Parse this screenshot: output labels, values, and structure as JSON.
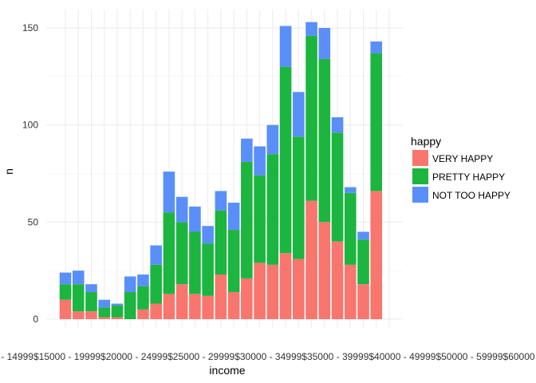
{
  "chart_data": {
    "type": "bar",
    "stacked": true,
    "xlabel": "income",
    "ylabel": "n",
    "ylim": [
      0,
      158
    ],
    "yticks": [
      0,
      50,
      100,
      150
    ],
    "grid": true,
    "legend_position": "right",
    "legend_title": "happy",
    "x_tick_text": "UNDER $1000$1000 TO 2999$3000 TO 3999$4000 TO 4999$5000 TO 5999$6000 TO 6999$7000 TO 7999$8000 TO 9999$10000 - 14999$15000 - 19999$20000 - 24999$25000 - 29999$30000 - 34999$35000 - 39999$40000 - 49999$50000 - 59999$60000 - 74999$75000 - 89999$90000 - 109999$110000 - 129999$130000 - 149999$150000 - 169999$170000 OR OVER",
    "categories": [
      "c1",
      "c2",
      "c3",
      "c4",
      "c5",
      "c6",
      "c7",
      "c8",
      "c9",
      "c10",
      "c11",
      "c12",
      "c13",
      "c14",
      "c15",
      "c16",
      "c17",
      "c18",
      "c19",
      "c20",
      "c21",
      "c22",
      "c23",
      "c24",
      "c25",
      "c26"
    ],
    "series": [
      {
        "name": "VERY HAPPY",
        "color": "#F8766D",
        "values": [
          10,
          4,
          4,
          1,
          1,
          0,
          5,
          8,
          13,
          18,
          13,
          12,
          23,
          14,
          21,
          29,
          28,
          34,
          31,
          61,
          50,
          40,
          28,
          18,
          66,
          0
        ]
      },
      {
        "name": "PRETTY HAPPY",
        "color": "#1CB540",
        "values": [
          8,
          14,
          10,
          5,
          6,
          14,
          12,
          20,
          42,
          32,
          32,
          27,
          33,
          32,
          60,
          45,
          57,
          96,
          63,
          85,
          84,
          56,
          37,
          23,
          71,
          0
        ]
      },
      {
        "name": "NOT TOO HAPPY",
        "color": "#5A8FFA",
        "values": [
          6,
          7,
          4,
          4,
          1,
          8,
          6,
          10,
          21,
          13,
          13,
          9,
          10,
          14,
          12,
          15,
          15,
          21,
          23,
          7,
          16,
          8,
          3,
          4,
          6,
          0
        ]
      }
    ]
  }
}
